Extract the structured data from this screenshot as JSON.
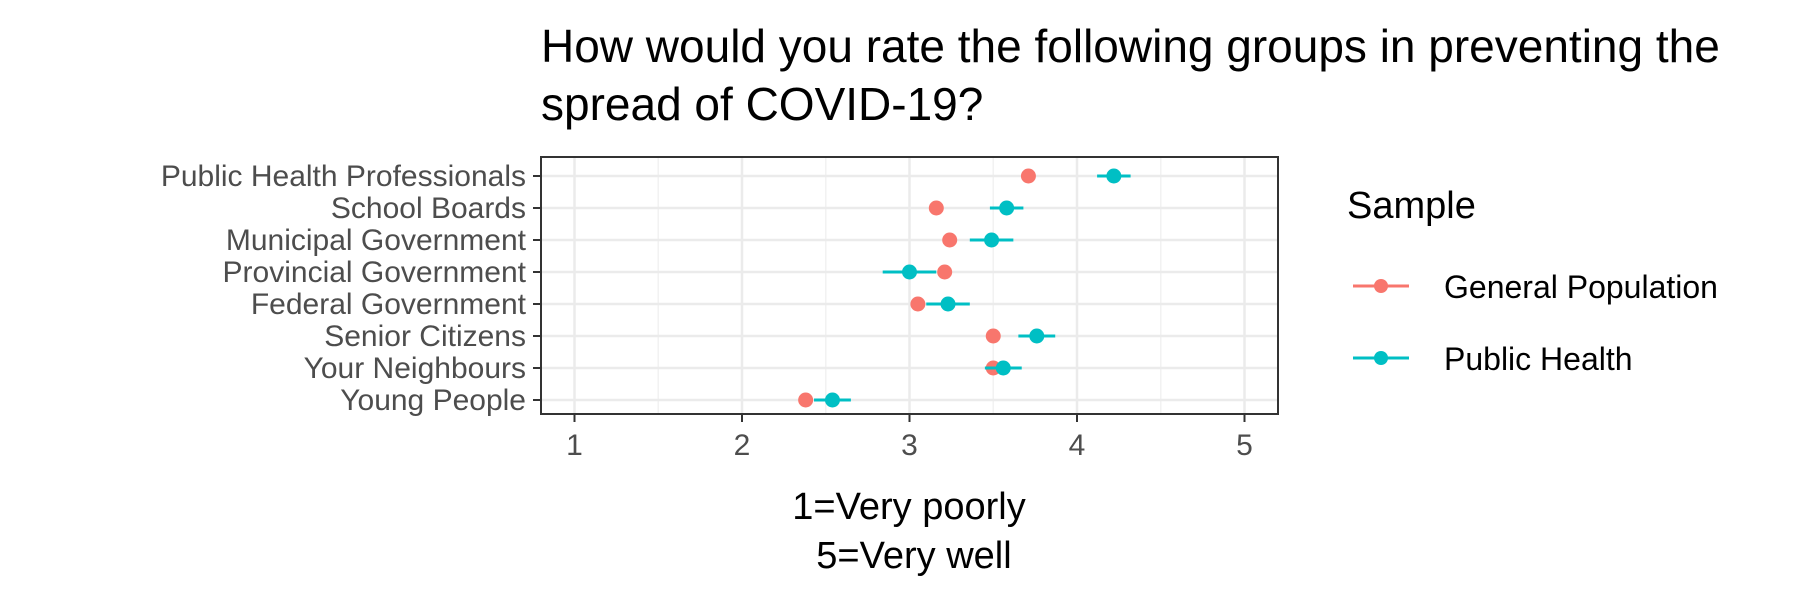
{
  "chart_data": {
    "type": "scatter",
    "title": [
      "How would you rate the following groups in preventing the",
      "spread of COVID-19?"
    ],
    "xlabel": [
      "1=Very poorly",
      "5=Very well"
    ],
    "ylabel": "",
    "xlim": [
      0.8,
      5.2
    ],
    "xticks": [
      1,
      2,
      3,
      4,
      5
    ],
    "grid": true,
    "legend_position": "right",
    "legend_title": "Sample",
    "categories": [
      "Public Health Professionals",
      "School Boards",
      "Municipal Government",
      "Provincial Government",
      "Federal Government",
      "Senior Citizens",
      "Your Neighbours",
      "Young People"
    ],
    "series": [
      {
        "name": "General Population",
        "color": "#F8766D",
        "values": [
          3.71,
          3.16,
          3.24,
          3.21,
          3.05,
          3.5,
          3.5,
          2.38
        ],
        "ci_low": [
          3.68,
          3.13,
          3.21,
          3.18,
          3.02,
          3.47,
          3.47,
          2.35
        ],
        "ci_high": [
          3.74,
          3.19,
          3.27,
          3.24,
          3.08,
          3.53,
          3.53,
          2.41
        ]
      },
      {
        "name": "Public Health",
        "color": "#00BFC4",
        "values": [
          4.22,
          3.58,
          3.49,
          3.0,
          3.23,
          3.76,
          3.56,
          2.54
        ],
        "ci_low": [
          4.12,
          3.48,
          3.36,
          2.84,
          3.1,
          3.65,
          3.45,
          2.43
        ],
        "ci_high": [
          4.32,
          3.68,
          3.62,
          3.16,
          3.36,
          3.87,
          3.67,
          2.65
        ]
      }
    ]
  }
}
